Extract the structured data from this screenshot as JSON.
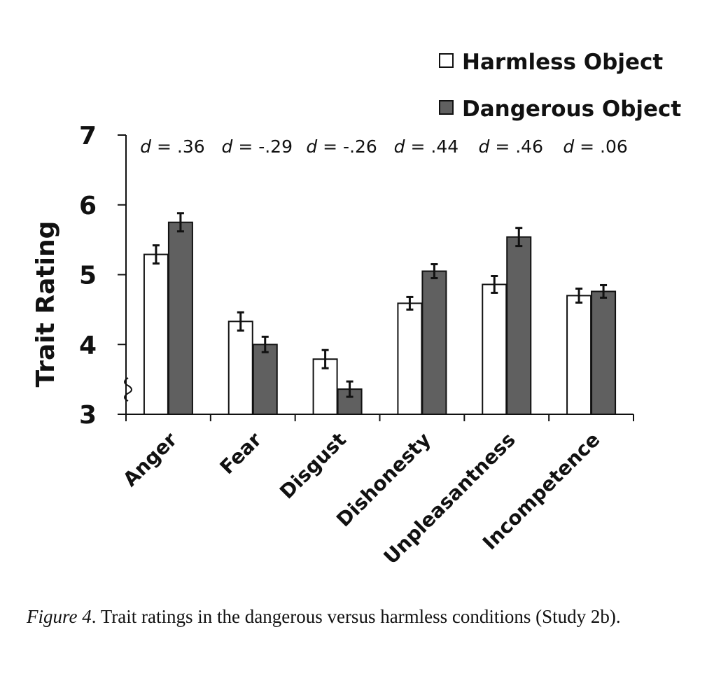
{
  "chart_data": {
    "type": "bar",
    "ylabel": "Trait Rating",
    "ylim": [
      3,
      7
    ],
    "yticks": [
      "3",
      "4",
      "5",
      "6",
      "7"
    ],
    "axis_break": true,
    "grid": false,
    "legend_position": "top-right",
    "categories": [
      "Anger",
      "Fear",
      "Disgust",
      "Dishonesty",
      "Unpleasantness",
      "Incompetence"
    ],
    "series": [
      {
        "name": "Harmless Object",
        "color": "#ffffff",
        "values": [
          5.29,
          4.33,
          3.79,
          4.59,
          4.86,
          4.7
        ],
        "errors": [
          0.13,
          0.13,
          0.13,
          0.09,
          0.12,
          0.1
        ]
      },
      {
        "name": "Dangerous Object",
        "color": "#606060",
        "values": [
          5.75,
          4.0,
          3.36,
          5.05,
          5.54,
          4.76
        ],
        "errors": [
          0.13,
          0.11,
          0.11,
          0.1,
          0.13,
          0.09
        ]
      }
    ],
    "annotations": [
      {
        "prefix": "d",
        "value": " = .36"
      },
      {
        "prefix": "d",
        "value": " = -.29"
      },
      {
        "prefix": "d",
        "value": " = -.26"
      },
      {
        "prefix": "d",
        "value": " = .44"
      },
      {
        "prefix": "d",
        "value": " = .46"
      },
      {
        "prefix": "d",
        "value": " = .06"
      }
    ]
  },
  "caption": {
    "figure_label": "Figure 4",
    "text": ".  Trait ratings in the dangerous versus harmless conditions (Study 2b)."
  }
}
